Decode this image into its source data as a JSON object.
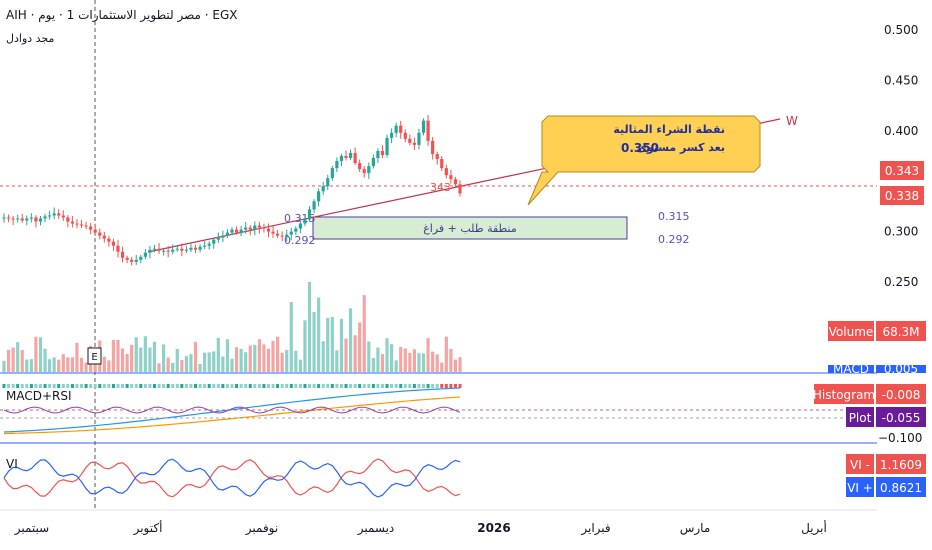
{
  "header": {
    "title": "AIH · مصر لتطوير الاستثمارات 1 · يوم · EGX",
    "subtitle": "مجد دوادل"
  },
  "chart_data": {
    "type": "candlestick",
    "ylim": [
      0.22,
      0.52
    ],
    "y_ticks": [
      0.5,
      0.45,
      0.4,
      0.35,
      0.3,
      0.25
    ],
    "y_tick_labels": [
      "0.500",
      "0.450",
      "0.400",
      "",
      "0.300",
      "0.250"
    ],
    "x_labels": [
      "سبتمبر",
      "أكتوبر",
      "نوفمبر",
      "ديسمبر",
      "2026",
      "فبراير",
      "مارس",
      "أبريل"
    ],
    "last_price_labels": [
      "0.343",
      "0.338"
    ],
    "price_marker": "343",
    "zone": {
      "top": 0.315,
      "bottom": 0.292,
      "label": "منطقة طلب + فراغ",
      "top_label": "0.315",
      "bottom_label": "0.292",
      "left_label_top": "0.315",
      "left_label_bottom": "0.292"
    },
    "trendline_label": "W",
    "annotation": {
      "line1": "نقطة الشراء المثالية",
      "line2": "بعد كسر مستوى",
      "value": "0.350"
    },
    "closes": [
      0.314,
      0.313,
      0.312,
      0.313,
      0.311,
      0.313,
      0.314,
      0.31,
      0.313,
      0.315,
      0.316,
      0.318,
      0.316,
      0.314,
      0.31,
      0.308,
      0.307,
      0.306,
      0.305,
      0.302,
      0.299,
      0.296,
      0.293,
      0.29,
      0.286,
      0.28,
      0.274,
      0.272,
      0.27,
      0.272,
      0.275,
      0.279,
      0.282,
      0.283,
      0.281,
      0.281,
      0.28,
      0.282,
      0.283,
      0.281,
      0.282,
      0.284,
      0.282,
      0.285,
      0.286,
      0.288,
      0.292,
      0.294,
      0.296,
      0.299,
      0.302,
      0.299,
      0.302,
      0.304,
      0.302,
      0.306,
      0.304,
      0.303,
      0.3,
      0.298,
      0.296,
      0.295,
      0.297,
      0.3,
      0.303,
      0.308,
      0.312,
      0.322,
      0.33,
      0.34,
      0.345,
      0.353,
      0.363,
      0.37,
      0.375,
      0.373,
      0.378,
      0.368,
      0.362,
      0.358,
      0.365,
      0.373,
      0.38,
      0.376,
      0.393,
      0.398,
      0.405,
      0.398,
      0.392,
      0.388,
      0.386,
      0.398,
      0.41,
      0.39,
      0.377,
      0.372,
      0.363,
      0.356,
      0.352,
      0.347,
      0.338
    ],
    "volume": {
      "label": "Volume",
      "value": "68.3M"
    },
    "macd": {
      "name": "MACD+RSI",
      "macd_label": "MACD",
      "macd_value": "0.005",
      "hist_label": "Histogram",
      "hist_value": "-0.008",
      "plot_label": "Plot",
      "plot_value": "-0.055",
      "axis_label": "−0.100"
    },
    "vi": {
      "name": "VI",
      "minus_label": "VI -",
      "minus_value": "1.1609",
      "plus_label": "VI +",
      "plus_value": "0.8621"
    }
  },
  "colors": {
    "up": "#26a69a",
    "down": "#ef5350",
    "vol_up": "#8fd1c8",
    "vol_down": "#f4a5a3",
    "accent": "#2962ff",
    "zone": "#d6ecd3",
    "callout": "#ffd054",
    "purple": "#6a1b9a"
  }
}
